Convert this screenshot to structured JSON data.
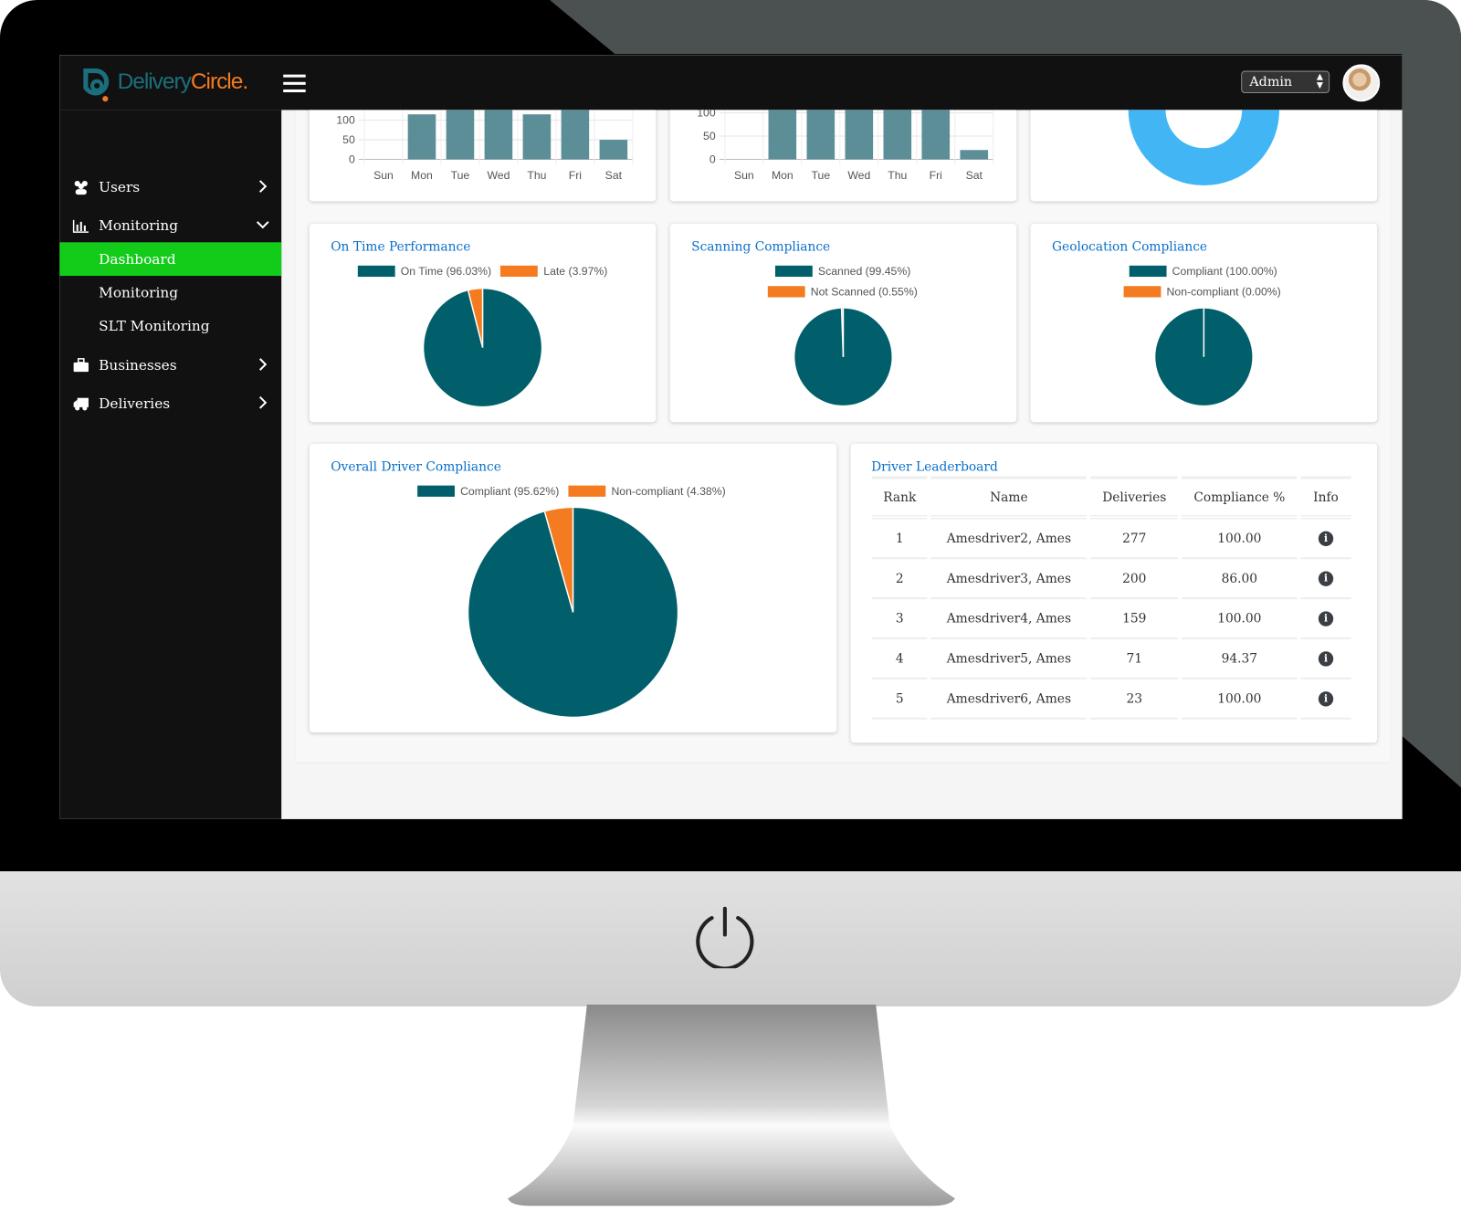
{
  "app": {
    "logo_part1": "Delivery",
    "logo_part2": "Circle."
  },
  "topbar": {
    "role_select": "Admin"
  },
  "sidebar": {
    "items": [
      {
        "label": "Users",
        "icon": "users-icon"
      },
      {
        "label": "Monitoring",
        "icon": "bar-chart-icon"
      },
      {
        "label": "Dashboard",
        "active": true
      },
      {
        "label": "Monitoring"
      },
      {
        "label": "SLT Monitoring"
      },
      {
        "label": "Businesses",
        "icon": "briefcase-icon"
      },
      {
        "label": "Deliveries",
        "icon": "truck-icon"
      }
    ]
  },
  "colors": {
    "teal": "#005f6b",
    "orange": "#f47b20",
    "bar": "#5b8e97",
    "donut": "#42b6f4",
    "active": "#13cc1a",
    "title": "#0a6fc9"
  },
  "cards": {
    "on_time": {
      "title": "On Time Performance",
      "legend": [
        "On Time (96.03%)",
        "Late (3.97%)"
      ]
    },
    "scanning": {
      "title": "Scanning Compliance",
      "legend": [
        "Scanned (99.45%)",
        "Not Scanned (0.55%)"
      ]
    },
    "geo": {
      "title": "Geolocation Compliance",
      "legend": [
        "Compliant (100.00%)",
        "Non-compliant (0.00%)"
      ]
    },
    "overall": {
      "title": "Overall Driver Compliance",
      "legend": [
        "Compliant (95.62%)",
        "Non-compliant (4.38%)"
      ]
    }
  },
  "leaderboard": {
    "title": "Driver Leaderboard",
    "columns": [
      "Rank",
      "Name",
      "Deliveries",
      "Compliance %",
      "Info"
    ],
    "rows": [
      {
        "rank": "1",
        "name": "Amesdriver2, Ames",
        "deliveries": "277",
        "compliance": "100.00"
      },
      {
        "rank": "2",
        "name": "Amesdriver3, Ames",
        "deliveries": "200",
        "compliance": "86.00"
      },
      {
        "rank": "3",
        "name": "Amesdriver4, Ames",
        "deliveries": "159",
        "compliance": "100.00"
      },
      {
        "rank": "4",
        "name": "Amesdriver5, Ames",
        "deliveries": "71",
        "compliance": "94.37"
      },
      {
        "rank": "5",
        "name": "Amesdriver6, Ames",
        "deliveries": "23",
        "compliance": "100.00"
      }
    ]
  },
  "chart_data": [
    {
      "type": "bar",
      "categories": [
        "Sun",
        "Mon",
        "Tue",
        "Wed",
        "Thu",
        "Fri",
        "Sat"
      ],
      "values": [
        0,
        115,
        140,
        140,
        115,
        140,
        50
      ],
      "yticks": [
        0,
        50,
        100
      ],
      "grid": true
    },
    {
      "type": "bar",
      "categories": [
        "Sun",
        "Mon",
        "Tue",
        "Wed",
        "Thu",
        "Fri",
        "Sat"
      ],
      "values": [
        0,
        130,
        130,
        130,
        130,
        130,
        20
      ],
      "yticks": [
        0,
        50,
        100
      ],
      "grid": true
    },
    {
      "type": "pie",
      "donut": true,
      "values": [
        100
      ]
    },
    {
      "type": "pie",
      "labels": [
        "On Time",
        "Late"
      ],
      "values": [
        96.03,
        3.97
      ]
    },
    {
      "type": "pie",
      "labels": [
        "Scanned",
        "Not Scanned"
      ],
      "values": [
        99.45,
        0.55
      ]
    },
    {
      "type": "pie",
      "labels": [
        "Compliant",
        "Non-compliant"
      ],
      "values": [
        100.0,
        0.0
      ]
    },
    {
      "type": "pie",
      "labels": [
        "Compliant",
        "Non-compliant"
      ],
      "values": [
        95.62,
        4.38
      ]
    }
  ]
}
